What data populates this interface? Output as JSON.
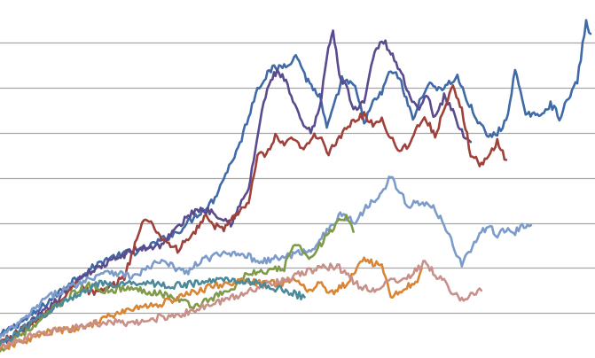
{
  "chart_data": {
    "type": "line",
    "grid": true,
    "gridlines_y": [
      20,
      40,
      60,
      80,
      100,
      120,
      140
    ],
    "ylim": [
      0,
      159
    ],
    "xlim": [
      0,
      665
    ],
    "legend": "none",
    "series": [
      {
        "color": "#3f6aa7",
        "points": [
          [
            0,
            10
          ],
          [
            40,
            20
          ],
          [
            80,
            34
          ],
          [
            120,
            44
          ],
          [
            160,
            48
          ],
          [
            200,
            56
          ],
          [
            240,
            70
          ],
          [
            270,
            95
          ],
          [
            290,
            120
          ],
          [
            305,
            128
          ],
          [
            320,
            130
          ],
          [
            335,
            134
          ],
          [
            345,
            124
          ],
          [
            360,
            116
          ],
          [
            368,
            102
          ],
          [
            375,
            110
          ],
          [
            385,
            124
          ],
          [
            400,
            120
          ],
          [
            410,
            105
          ],
          [
            420,
            113
          ],
          [
            430,
            118
          ],
          [
            440,
            128
          ],
          [
            450,
            124
          ],
          [
            465,
            106
          ],
          [
            480,
            121
          ],
          [
            500,
            120
          ],
          [
            515,
            125
          ],
          [
            525,
            115
          ],
          [
            540,
            104
          ],
          [
            550,
            98
          ],
          [
            560,
            100
          ],
          [
            570,
            105
          ],
          [
            580,
            128
          ],
          [
            590,
            110
          ],
          [
            605,
            107
          ],
          [
            620,
            113
          ],
          [
            630,
            107
          ],
          [
            640,
            115
          ],
          [
            650,
            123
          ],
          [
            660,
            149
          ],
          [
            665,
            144
          ]
        ]
      },
      {
        "color": "#5a4a8e",
        "points": [
          [
            0,
            5
          ],
          [
            30,
            14
          ],
          [
            60,
            24
          ],
          [
            90,
            36
          ],
          [
            120,
            42
          ],
          [
            150,
            48
          ],
          [
            180,
            50
          ],
          [
            200,
            58
          ],
          [
            220,
            66
          ],
          [
            240,
            65
          ],
          [
            260,
            60
          ],
          [
            280,
            75
          ],
          [
            295,
            110
          ],
          [
            305,
            124
          ],
          [
            312,
            127
          ],
          [
            320,
            124
          ],
          [
            330,
            114
          ],
          [
            340,
            104
          ],
          [
            350,
            100
          ],
          [
            360,
            110
          ],
          [
            368,
            135
          ],
          [
            375,
            145
          ],
          [
            382,
            126
          ],
          [
            390,
            120
          ],
          [
            400,
            110
          ],
          [
            410,
            114
          ],
          [
            420,
            134
          ],
          [
            430,
            142
          ],
          [
            440,
            136
          ],
          [
            450,
            128
          ],
          [
            460,
            118
          ],
          [
            470,
            110
          ],
          [
            480,
            118
          ],
          [
            490,
            106
          ],
          [
            500,
            116
          ],
          [
            510,
            110
          ],
          [
            520,
            100
          ],
          [
            530,
            96
          ]
        ]
      },
      {
        "color": "#a0403a",
        "points": [
          [
            0,
            7
          ],
          [
            40,
            16
          ],
          [
            70,
            26
          ],
          [
            90,
            35
          ],
          [
            100,
            29
          ],
          [
            120,
            30
          ],
          [
            140,
            36
          ],
          [
            160,
            60
          ],
          [
            170,
            61
          ],
          [
            180,
            54
          ],
          [
            190,
            51
          ],
          [
            200,
            48
          ],
          [
            210,
            52
          ],
          [
            220,
            56
          ],
          [
            230,
            63
          ],
          [
            240,
            59
          ],
          [
            250,
            57
          ],
          [
            260,
            61
          ],
          [
            270,
            66
          ],
          [
            280,
            68
          ],
          [
            290,
            90
          ],
          [
            300,
            90
          ],
          [
            310,
            98
          ],
          [
            320,
            94
          ],
          [
            330,
            98
          ],
          [
            340,
            92
          ],
          [
            350,
            98
          ],
          [
            360,
            99
          ],
          [
            370,
            91
          ],
          [
            380,
            96
          ],
          [
            390,
            102
          ],
          [
            400,
            106
          ],
          [
            410,
            108
          ],
          [
            420,
            104
          ],
          [
            430,
            106
          ],
          [
            440,
            98
          ],
          [
            450,
            92
          ],
          [
            460,
            95
          ],
          [
            470,
            103
          ],
          [
            480,
            106
          ],
          [
            490,
            99
          ],
          [
            500,
            110
          ],
          [
            510,
            120
          ],
          [
            520,
            110
          ],
          [
            530,
            91
          ],
          [
            540,
            86
          ],
          [
            550,
            89
          ],
          [
            560,
            96
          ],
          [
            570,
            88
          ]
        ]
      },
      {
        "color": "#7b9ccb",
        "points": [
          [
            0,
            9
          ],
          [
            30,
            18
          ],
          [
            50,
            26
          ],
          [
            70,
            30
          ],
          [
            100,
            35
          ],
          [
            120,
            39
          ],
          [
            150,
            36
          ],
          [
            180,
            43
          ],
          [
            210,
            38
          ],
          [
            230,
            44
          ],
          [
            250,
            46
          ],
          [
            270,
            47
          ],
          [
            290,
            43
          ],
          [
            310,
            44
          ],
          [
            330,
            46
          ],
          [
            350,
            48
          ],
          [
            370,
            57
          ],
          [
            385,
            64
          ],
          [
            400,
            60
          ],
          [
            410,
            66
          ],
          [
            420,
            70
          ],
          [
            430,
            74
          ],
          [
            440,
            81
          ],
          [
            450,
            73
          ],
          [
            460,
            68
          ],
          [
            470,
            69
          ],
          [
            480,
            68
          ],
          [
            490,
            66
          ],
          [
            500,
            60
          ],
          [
            510,
            50
          ],
          [
            520,
            42
          ],
          [
            530,
            48
          ],
          [
            540,
            55
          ],
          [
            550,
            58
          ],
          [
            560,
            55
          ],
          [
            570,
            57
          ],
          [
            580,
            56
          ],
          [
            590,
            59
          ],
          [
            598,
            59
          ]
        ]
      },
      {
        "color": "#7f9a48",
        "points": [
          [
            0,
            3
          ],
          [
            20,
            10
          ],
          [
            40,
            14
          ],
          [
            60,
            22
          ],
          [
            80,
            28
          ],
          [
            100,
            32
          ],
          [
            120,
            30
          ],
          [
            140,
            31
          ],
          [
            160,
            30
          ],
          [
            180,
            29
          ],
          [
            200,
            26
          ],
          [
            220,
            23
          ],
          [
            240,
            27
          ],
          [
            260,
            30
          ],
          [
            280,
            38
          ],
          [
            300,
            38
          ],
          [
            320,
            40
          ],
          [
            330,
            50
          ],
          [
            340,
            48
          ],
          [
            350,
            45
          ],
          [
            360,
            50
          ],
          [
            370,
            55
          ],
          [
            380,
            60
          ],
          [
            390,
            62
          ],
          [
            398,
            56
          ]
        ]
      },
      {
        "color": "#d98534",
        "points": [
          [
            0,
            4
          ],
          [
            30,
            8
          ],
          [
            60,
            12
          ],
          [
            90,
            13
          ],
          [
            120,
            18
          ],
          [
            150,
            22
          ],
          [
            180,
            24
          ],
          [
            210,
            28
          ],
          [
            240,
            32
          ],
          [
            270,
            34
          ],
          [
            300,
            33
          ],
          [
            330,
            34
          ],
          [
            350,
            30
          ],
          [
            360,
            34
          ],
          [
            370,
            28
          ],
          [
            390,
            33
          ],
          [
            400,
            38
          ],
          [
            410,
            45
          ],
          [
            420,
            42
          ],
          [
            430,
            41
          ],
          [
            440,
            27
          ],
          [
            450,
            30
          ],
          [
            460,
            32
          ],
          [
            470,
            34
          ],
          [
            475,
            40
          ]
        ]
      },
      {
        "color": "#c9908a",
        "points": [
          [
            0,
            5
          ],
          [
            30,
            9
          ],
          [
            60,
            12
          ],
          [
            90,
            14
          ],
          [
            120,
            16
          ],
          [
            150,
            15
          ],
          [
            180,
            18
          ],
          [
            210,
            20
          ],
          [
            240,
            24
          ],
          [
            270,
            28
          ],
          [
            300,
            33
          ],
          [
            330,
            36
          ],
          [
            360,
            40
          ],
          [
            380,
            41
          ],
          [
            400,
            33
          ],
          [
            420,
            30
          ],
          [
            440,
            34
          ],
          [
            460,
            36
          ],
          [
            475,
            41
          ],
          [
            480,
            43
          ],
          [
            490,
            36
          ],
          [
            500,
            34
          ],
          [
            510,
            29
          ],
          [
            520,
            26
          ],
          [
            530,
            28
          ],
          [
            542,
            30
          ]
        ]
      },
      {
        "color": "#4a8a9a",
        "points": [
          [
            0,
            6
          ],
          [
            30,
            14
          ],
          [
            60,
            22
          ],
          [
            90,
            29
          ],
          [
            110,
            33
          ],
          [
            130,
            32
          ],
          [
            160,
            34
          ],
          [
            190,
            32
          ],
          [
            220,
            33
          ],
          [
            250,
            35
          ],
          [
            280,
            34
          ],
          [
            300,
            32
          ],
          [
            320,
            30
          ],
          [
            335,
            28
          ],
          [
            343,
            27
          ]
        ]
      }
    ]
  }
}
